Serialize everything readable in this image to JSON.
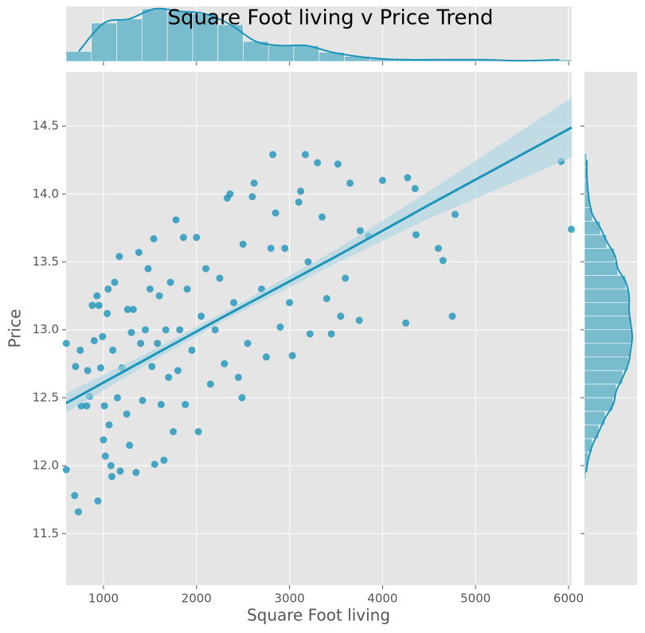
{
  "chart_data": {
    "type": "jointplot",
    "title": "Square Foot living v Price Trend",
    "x_label": "Square Foot living",
    "y_label": "Price",
    "xlim": [
      598,
      6034
    ],
    "ylim": [
      11.12,
      14.9
    ],
    "xticks": [
      1000,
      2000,
      3000,
      4000,
      5000,
      6000
    ],
    "yticks": [
      11.5,
      {
        "value": 12,
        "label": "12.0"
      },
      12.5,
      {
        "value": 13,
        "label": "13.0"
      },
      13.5,
      {
        "value": 14,
        "label": "14.0"
      },
      14.5
    ],
    "grid": true,
    "scatter": {
      "color": "#1b94b8",
      "x": [
        600,
        600,
        690,
        730,
        700,
        750,
        760,
        820,
        830,
        850,
        880,
        900,
        930,
        940,
        950,
        970,
        990,
        1000,
        1010,
        1020,
        1040,
        1050,
        1060,
        1080,
        1090,
        1100,
        1120,
        1150,
        1170,
        1180,
        1200,
        1250,
        1260,
        1280,
        1300,
        1320,
        1350,
        1380,
        1400,
        1420,
        1450,
        1480,
        1500,
        1520,
        1540,
        1550,
        1580,
        1600,
        1620,
        1650,
        1670,
        1700,
        1720,
        1750,
        1780,
        1800,
        1820,
        1860,
        1880,
        1900,
        1950,
        2000,
        2020,
        2050,
        2100,
        2150,
        2200,
        2250,
        2300,
        2330,
        2360,
        2400,
        2450,
        2490,
        2500,
        2550,
        2600,
        2620,
        2700,
        2750,
        2800,
        2820,
        2850,
        2900,
        2950,
        3000,
        3030,
        3100,
        3120,
        3170,
        3200,
        3220,
        3300,
        3350,
        3400,
        3450,
        3520,
        3550,
        3600,
        3650,
        3750,
        3760,
        3850,
        4000,
        4250,
        4270,
        4350,
        4360,
        4600,
        4650,
        4750,
        4780,
        5920,
        6030
      ],
      "y": [
        11.97,
        12.9,
        11.78,
        11.66,
        12.73,
        12.85,
        12.44,
        12.44,
        12.7,
        12.51,
        13.18,
        12.92,
        13.25,
        11.74,
        13.18,
        12.72,
        12.95,
        12.19,
        12.44,
        12.07,
        13.12,
        13.3,
        12.3,
        12.0,
        11.92,
        12.85,
        13.35,
        12.5,
        13.54,
        11.96,
        12.72,
        12.38,
        13.15,
        12.15,
        12.98,
        13.15,
        11.95,
        13.57,
        12.9,
        12.48,
        13.0,
        13.45,
        13.3,
        12.73,
        13.67,
        12.01,
        12.9,
        13.25,
        12.45,
        12.04,
        13.0,
        12.65,
        13.35,
        12.25,
        13.81,
        12.7,
        13.0,
        13.68,
        12.45,
        13.3,
        12.85,
        13.68,
        12.25,
        13.1,
        13.45,
        12.6,
        13.0,
        13.38,
        12.75,
        13.97,
        14.0,
        13.2,
        12.65,
        12.5,
        13.63,
        12.9,
        13.98,
        14.08,
        13.3,
        12.8,
        13.6,
        14.29,
        13.86,
        13.02,
        13.6,
        13.2,
        12.81,
        13.94,
        14.02,
        14.29,
        13.5,
        12.97,
        14.23,
        13.83,
        13.23,
        12.97,
        14.22,
        13.1,
        13.38,
        14.08,
        13.07,
        13.73,
        13.69,
        14.1,
        13.05,
        14.12,
        14.04,
        13.7,
        13.6,
        13.51,
        13.1,
        13.85,
        14.24,
        13.74
      ]
    },
    "regression": {
      "color": "#1b94b8",
      "band_color": "#a9d4e2",
      "x": [
        598,
        1500,
        2300,
        3500,
        4500,
        6034
      ],
      "y": [
        12.46,
        12.8,
        13.1,
        13.54,
        13.92,
        14.49
      ],
      "ci_lower": [
        12.39,
        12.76,
        13.07,
        13.49,
        13.82,
        14.27
      ],
      "ci_upper": [
        12.53,
        12.84,
        13.13,
        13.59,
        14.02,
        14.71
      ]
    },
    "x_hist": {
      "color": "#74bacd",
      "lim": [
        0,
        66
      ],
      "bins": [
        598,
        870,
        1142,
        1414,
        1686,
        1958,
        2230,
        2502,
        2774,
        3046,
        3318,
        3590,
        3862,
        4134,
        4406,
        4678,
        4950,
        5222,
        5494,
        5766,
        6034
      ],
      "counts": [
        12,
        46,
        51,
        63,
        60,
        57,
        44,
        24,
        19,
        19,
        11,
        6,
        3,
        2,
        2,
        2,
        2,
        1,
        1,
        2
      ]
    },
    "y_hist": {
      "color": "#74bacd",
      "lim": [
        0,
        66
      ],
      "bins": [
        11.9,
        12.0,
        12.1,
        12.2,
        12.3,
        12.4,
        12.5,
        12.6,
        12.7,
        12.8,
        12.9,
        13.0,
        13.1,
        13.2,
        13.3,
        13.4,
        13.5,
        13.6,
        13.7,
        13.8,
        13.9,
        14.0,
        14.1,
        14.2,
        14.3
      ],
      "counts": [
        2,
        5,
        10,
        18,
        26,
        36,
        40,
        48,
        55,
        58,
        60,
        58,
        56,
        56,
        52,
        42,
        38,
        28,
        20,
        10,
        6,
        4,
        3,
        3
      ]
    }
  }
}
